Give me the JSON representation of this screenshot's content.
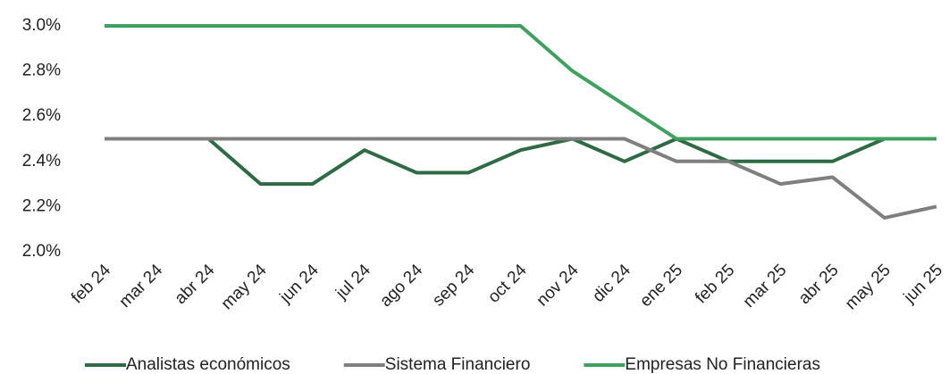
{
  "chart_data": {
    "type": "line",
    "categories": [
      "feb 24",
      "mar 24",
      "abr 24",
      "may 24",
      "jun 24",
      "jul 24",
      "ago 24",
      "sep 24",
      "oct 24",
      "nov 24",
      "dic 24",
      "ene 25",
      "feb 25",
      "mar 25",
      "abr 25",
      "may 25",
      "jun 25"
    ],
    "series": [
      {
        "name": "Analistas económicos",
        "color": "#2e6b45",
        "values": [
          2.5,
          2.5,
          2.5,
          2.3,
          2.3,
          2.45,
          2.35,
          2.35,
          2.45,
          2.5,
          2.4,
          2.5,
          2.4,
          2.4,
          2.4,
          2.5,
          2.5
        ]
      },
      {
        "name": "Sistema Financiero",
        "color": "#7f7f7f",
        "values": [
          2.5,
          2.5,
          2.5,
          2.5,
          2.5,
          2.5,
          2.5,
          2.5,
          2.5,
          2.5,
          2.5,
          2.4,
          2.4,
          2.3,
          2.33,
          2.15,
          2.2
        ]
      },
      {
        "name": "Empresas No Financieras",
        "color": "#3fa05f",
        "values": [
          3.0,
          3.0,
          3.0,
          3.0,
          3.0,
          3.0,
          3.0,
          3.0,
          3.0,
          2.8,
          2.65,
          2.5,
          2.5,
          2.5,
          2.5,
          2.5,
          2.5
        ]
      }
    ],
    "ylim": [
      2.0,
      3.0
    ],
    "yticks": [
      {
        "value": 2.0,
        "label": "2.0%"
      },
      {
        "value": 2.2,
        "label": "2.2%"
      },
      {
        "value": 2.4,
        "label": "2.4%"
      },
      {
        "value": 2.6,
        "label": "2.6%"
      },
      {
        "value": 2.8,
        "label": "2.8%"
      },
      {
        "value": 3.0,
        "label": "3.0%"
      }
    ],
    "legend": "bottom"
  }
}
